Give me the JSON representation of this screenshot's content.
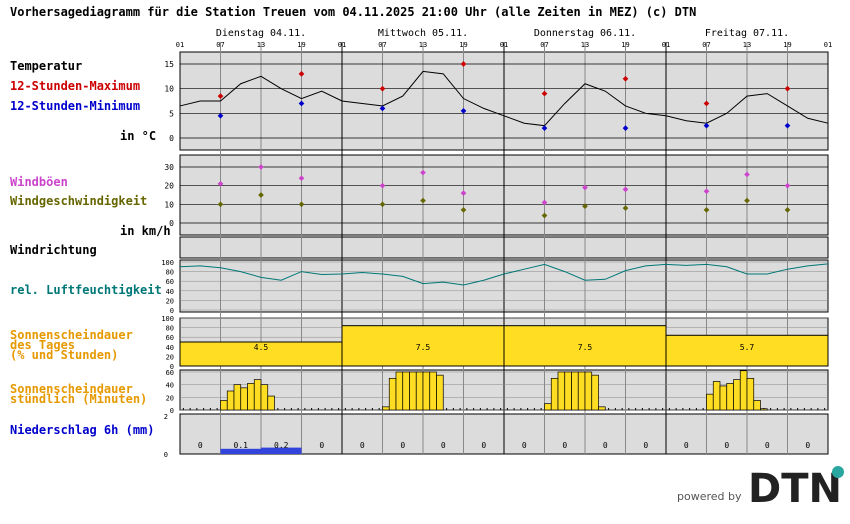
{
  "title": "Vorhersagediagramm für die Station Treuen vom 04.11.2025 21:00 Uhr (alle Zeiten in MEZ)   (c) DTN",
  "days": [
    "Dienstag 04.11.",
    "Mittwoch 05.11.",
    "Donnerstag 06.11.",
    "Freitag 07.11."
  ],
  "hour_ticks": [
    "01",
    "07",
    "13",
    "19",
    "01",
    "07",
    "13",
    "19",
    "01",
    "07",
    "13",
    "19",
    "01",
    "07",
    "13",
    "19",
    "01"
  ],
  "labels": {
    "temperatur": "Temperatur",
    "tmax": "12-Stunden-Maximum",
    "tmin": "12-Stunden-Minimum",
    "temp_unit": "in °C",
    "windboeen": "Windböen",
    "windgeschw": "Windgeschwindigkeit",
    "wind_unit": "in km/h",
    "windrichtung": "Windrichtung",
    "feuchte": "rel. Luftfeuchtigkeit",
    "sonne_tag_1": "Sonnenscheindauer",
    "sonne_tag_2": "des Tages",
    "sonne_tag_3": "(% und Stunden)",
    "sonne_std_1": "Sonnenscheindauer",
    "sonne_std_2": "stündlich (Minuten)",
    "niederschlag": "Niederschlag 6h (mm)"
  },
  "colors": {
    "tmax": "#cc0000",
    "tmin": "#0000cc",
    "gust": "#cc44cc",
    "wind": "#666600",
    "humidity": "#007777",
    "sun_label": "#e69900",
    "rain_label": "#0000cc",
    "bar": "#ffdd22",
    "panel_bg": "#dcdcdc",
    "rain_bar": "#3344dd"
  },
  "powered_by": "powered by",
  "logo_text": "DTN",
  "chart_data": [
    {
      "type": "line",
      "name": "temperature",
      "ylim": [
        0,
        15
      ],
      "yticks": [
        0,
        5,
        10,
        15
      ],
      "x_hours": [
        0,
        3,
        6,
        9,
        12,
        15,
        18,
        21,
        24,
        27,
        30,
        33,
        36,
        39,
        42,
        45,
        48,
        51,
        54,
        57,
        60,
        63,
        66,
        69,
        72,
        75,
        78,
        81,
        84,
        87,
        90,
        93,
        96
      ],
      "values": [
        6.5,
        7.5,
        7.5,
        11.0,
        12.5,
        10.0,
        8.0,
        9.5,
        7.5,
        7.0,
        6.5,
        8.5,
        13.5,
        13.0,
        8.0,
        6.0,
        4.5,
        3.0,
        2.5,
        7.0,
        11.0,
        9.5,
        6.5,
        5.0,
        4.5,
        3.5,
        3.0,
        5.0,
        8.5,
        9.0,
        6.5,
        4.0,
        3.0
      ],
      "tmax": [
        {
          "x": 6,
          "v": 8.5
        },
        {
          "x": 18,
          "v": 13.0
        },
        {
          "x": 30,
          "v": 10.0
        },
        {
          "x": 42,
          "v": 15.0
        },
        {
          "x": 54,
          "v": 9.0
        },
        {
          "x": 66,
          "v": 12.0
        },
        {
          "x": 78,
          "v": 7.0
        },
        {
          "x": 90,
          "v": 10.0
        }
      ],
      "tmin": [
        {
          "x": 6,
          "v": 4.5
        },
        {
          "x": 18,
          "v": 7.0
        },
        {
          "x": 30,
          "v": 6.0
        },
        {
          "x": 42,
          "v": 5.5
        },
        {
          "x": 54,
          "v": 2.0
        },
        {
          "x": 66,
          "v": 2.0
        },
        {
          "x": 78,
          "v": 2.5
        },
        {
          "x": 90,
          "v": 2.5
        }
      ]
    },
    {
      "type": "scatter",
      "name": "wind",
      "ylim": [
        0,
        30
      ],
      "yticks": [
        0,
        10,
        20,
        30
      ],
      "gust": [
        {
          "x": 6,
          "v": 21
        },
        {
          "x": 12,
          "v": 30
        },
        {
          "x": 18,
          "v": 24
        },
        {
          "x": 30,
          "v": 20
        },
        {
          "x": 36,
          "v": 27
        },
        {
          "x": 42,
          "v": 16
        },
        {
          "x": 54,
          "v": 11
        },
        {
          "x": 60,
          "v": 19
        },
        {
          "x": 66,
          "v": 18
        },
        {
          "x": 78,
          "v": 17
        },
        {
          "x": 84,
          "v": 26
        },
        {
          "x": 90,
          "v": 20
        }
      ],
      "speed": [
        {
          "x": 6,
          "v": 10
        },
        {
          "x": 12,
          "v": 15
        },
        {
          "x": 18,
          "v": 10
        },
        {
          "x": 30,
          "v": 10
        },
        {
          "x": 36,
          "v": 12
        },
        {
          "x": 42,
          "v": 7
        },
        {
          "x": 54,
          "v": 4
        },
        {
          "x": 60,
          "v": 9
        },
        {
          "x": 66,
          "v": 8
        },
        {
          "x": 78,
          "v": 7
        },
        {
          "x": 84,
          "v": 12
        },
        {
          "x": 90,
          "v": 7
        }
      ]
    },
    {
      "type": "line",
      "name": "humidity",
      "ylim": [
        0,
        100
      ],
      "yticks": [
        0,
        20,
        40,
        60,
        80,
        100
      ],
      "x_hours": [
        0,
        3,
        6,
        9,
        12,
        15,
        18,
        21,
        24,
        27,
        30,
        33,
        36,
        39,
        42,
        45,
        48,
        51,
        54,
        57,
        60,
        63,
        66,
        69,
        72,
        75,
        78,
        81,
        84,
        87,
        90,
        93,
        96
      ],
      "values": [
        90,
        92,
        88,
        80,
        68,
        62,
        80,
        74,
        75,
        78,
        75,
        70,
        55,
        58,
        52,
        62,
        75,
        85,
        95,
        80,
        62,
        64,
        82,
        92,
        95,
        93,
        95,
        90,
        75,
        75,
        85,
        92,
        96
      ]
    },
    {
      "type": "bar",
      "name": "sunshine_daily",
      "ylim": [
        0,
        100
      ],
      "yticks": [
        0,
        20,
        40,
        60,
        80,
        100
      ],
      "categories": [
        "04.11.",
        "05.11.",
        "06.11.",
        "07.11."
      ],
      "percent": [
        50,
        84,
        84,
        64
      ],
      "hours": [
        "4.5",
        "7.5",
        "7.5",
        "5.7"
      ]
    },
    {
      "type": "bar",
      "name": "sunshine_hourly",
      "ylim": [
        0,
        60
      ],
      "yticks": [
        0,
        20,
        40,
        60
      ],
      "series": [
        {
          "start_hour": 6,
          "values": [
            15,
            30,
            40,
            35,
            42,
            48,
            40,
            22,
            0
          ]
        },
        {
          "start_hour": 30,
          "values": [
            5,
            50,
            60,
            60,
            60,
            60,
            60,
            60,
            55,
            0
          ]
        },
        {
          "start_hour": 54,
          "values": [
            10,
            50,
            60,
            60,
            60,
            60,
            60,
            55,
            5
          ]
        },
        {
          "start_hour": 78,
          "values": [
            25,
            45,
            38,
            42,
            48,
            62,
            50,
            15,
            2
          ]
        }
      ]
    },
    {
      "type": "bar",
      "name": "precipitation",
      "ylim": [
        0,
        2
      ],
      "yticks": [
        0,
        2
      ],
      "values": [
        0,
        0.1,
        0.2,
        0,
        0,
        0,
        0,
        0,
        0,
        0,
        0,
        0,
        0,
        0,
        0,
        0
      ],
      "labels": [
        "0",
        "0.1",
        "0.2",
        "0",
        "0",
        "0",
        "0",
        "0",
        "0",
        "0",
        "0",
        "0",
        "0",
        "0",
        "0",
        "0"
      ]
    }
  ]
}
